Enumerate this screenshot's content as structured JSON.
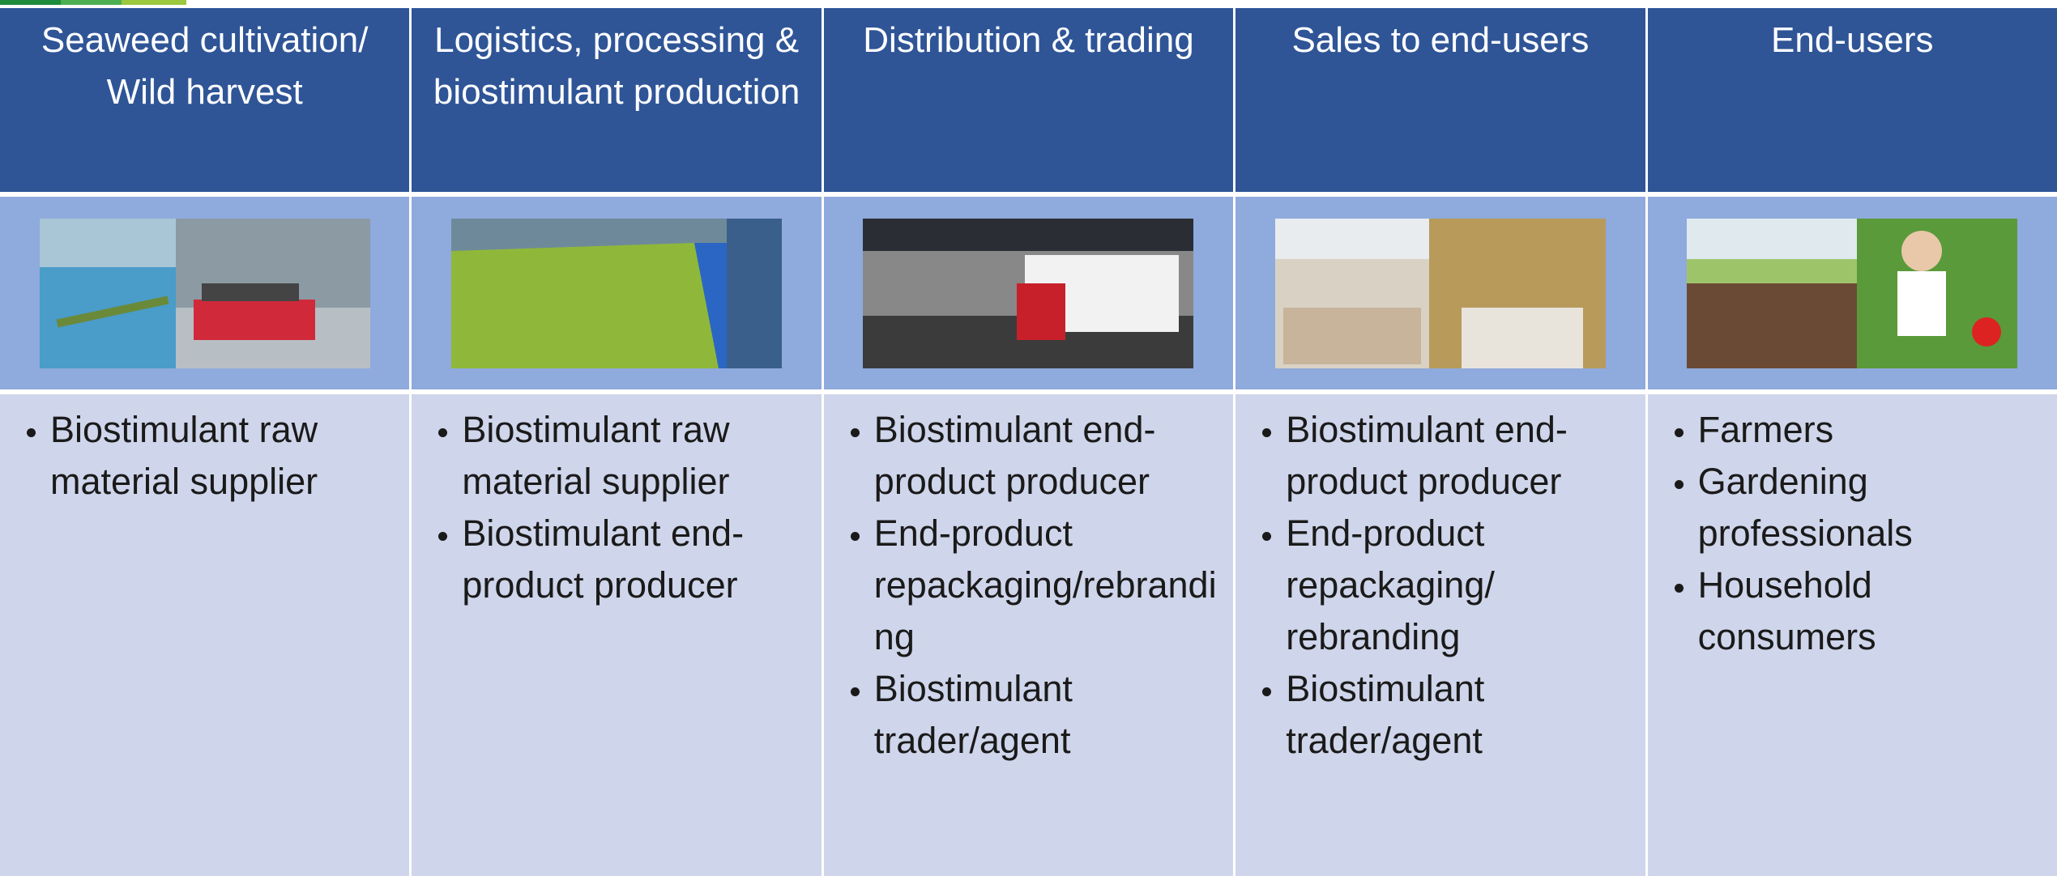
{
  "columns": [
    {
      "header": "Seaweed cultivation/ Wild harvest",
      "items": [
        "Biostimulant raw material supplier"
      ]
    },
    {
      "header": "Logistics, processing & biostimulant production",
      "items": [
        "Biostimulant raw material supplier",
        "Biostimulant end-product producer"
      ]
    },
    {
      "header": "Distribution & trading",
      "items": [
        "Biostimulant end-product producer",
        "End-product repackaging/rebranding",
        "Biostimulant trader/agent"
      ]
    },
    {
      "header": "Sales to end-users",
      "items": [
        "Biostimulant end-product producer",
        "End-product repackaging/ rebranding",
        "Biostimulant trader/agent"
      ]
    },
    {
      "header": "End-users",
      "items": [
        "Farmers",
        "Gardening professionals",
        "Household consumers"
      ]
    }
  ]
}
